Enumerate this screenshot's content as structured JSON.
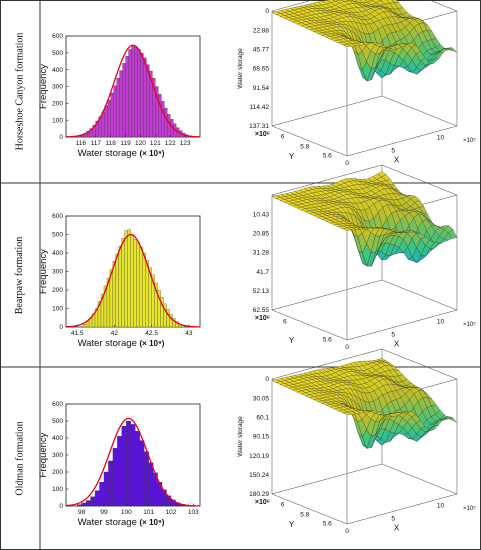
{
  "rows": [
    {
      "label": "Horseshoe Canyon formation"
    },
    {
      "label": "Bearpaw formation"
    },
    {
      "label": "Oldman formation"
    }
  ],
  "colors": {
    "fit_curve": "#e8001c",
    "grid_lines": "#222222"
  },
  "chart_data": [
    {
      "type": "bar",
      "subtype": "histogram-with-normal-fit",
      "panel": "Horseshoe Canyon formation",
      "xlabel": "Water storage",
      "xlabel_unit": "(× 10⁹)",
      "ylabel": "Frequency",
      "xlim": [
        115,
        124
      ],
      "ylim": [
        0,
        600
      ],
      "xticks": [
        116,
        117,
        118,
        119,
        120,
        121,
        122,
        123
      ],
      "yticks": [
        0,
        100,
        200,
        300,
        400,
        500,
        600
      ],
      "bar_color": "#c23cd3",
      "fit": {
        "mean": 119.5,
        "sd": 1.25,
        "peak": 545
      },
      "bins": [
        [
          115.9,
          8
        ],
        [
          116.1,
          14
        ],
        [
          116.3,
          22
        ],
        [
          116.5,
          34
        ],
        [
          116.7,
          50
        ],
        [
          116.9,
          70
        ],
        [
          117.1,
          95
        ],
        [
          117.3,
          120
        ],
        [
          117.5,
          150
        ],
        [
          117.7,
          185
        ],
        [
          117.9,
          220
        ],
        [
          118.1,
          262
        ],
        [
          118.3,
          305
        ],
        [
          118.5,
          350
        ],
        [
          118.7,
          395
        ],
        [
          118.9,
          438
        ],
        [
          119.1,
          480
        ],
        [
          119.3,
          520
        ],
        [
          119.5,
          545
        ],
        [
          119.7,
          535
        ],
        [
          119.9,
          520
        ],
        [
          120.1,
          498
        ],
        [
          120.3,
          470
        ],
        [
          120.5,
          430
        ],
        [
          120.7,
          392
        ],
        [
          120.9,
          350
        ],
        [
          121.1,
          300
        ],
        [
          121.3,
          255
        ],
        [
          121.5,
          212
        ],
        [
          121.7,
          172
        ],
        [
          121.9,
          135
        ],
        [
          122.1,
          105
        ],
        [
          122.3,
          78
        ],
        [
          122.5,
          55
        ],
        [
          122.7,
          38
        ],
        [
          122.9,
          24
        ],
        [
          123.1,
          14
        ],
        [
          123.3,
          8
        ]
      ]
    },
    {
      "type": "surface",
      "panel": "Horseshoe Canyon formation",
      "zlabel": "Water storage",
      "xlabel": "X",
      "ylabel": "Y",
      "x_multiplier": "×10⁵",
      "y_multiplier": "×10⁶",
      "zticks": [
        "0",
        "22.88",
        "45.77",
        "68.65",
        "91.54",
        "114.42",
        "137.31"
      ],
      "xticks": [
        "0",
        "5",
        "10"
      ],
      "yticks": [
        "5.6",
        "5.8",
        "6"
      ],
      "zlim": [
        0,
        137.31
      ]
    },
    {
      "type": "bar",
      "subtype": "histogram-with-normal-fit",
      "panel": "Bearpaw formation",
      "xlabel": "Water storage",
      "xlabel_unit": "(× 10⁹)",
      "ylabel": "Frequency",
      "xlim": [
        41.35,
        43.15
      ],
      "ylim": [
        0,
        600
      ],
      "xticks": [
        41.5,
        42,
        42.5,
        43
      ],
      "yticks": [
        0,
        100,
        200,
        300,
        400,
        500,
        600
      ],
      "bar_color": "#e6e62a",
      "fit": {
        "mean": 42.22,
        "sd": 0.25,
        "peak": 500
      },
      "bins": [
        [
          41.6,
          15
        ],
        [
          41.64,
          30
        ],
        [
          41.68,
          48
        ],
        [
          41.72,
          72
        ],
        [
          41.76,
          98
        ],
        [
          41.8,
          140
        ],
        [
          41.84,
          178
        ],
        [
          41.88,
          222
        ],
        [
          41.92,
          265
        ],
        [
          41.96,
          310
        ],
        [
          42.0,
          355
        ],
        [
          42.04,
          395
        ],
        [
          42.08,
          438
        ],
        [
          42.12,
          480
        ],
        [
          42.16,
          520
        ],
        [
          42.2,
          525
        ],
        [
          42.24,
          498
        ],
        [
          42.28,
          475
        ],
        [
          42.32,
          455
        ],
        [
          42.36,
          430
        ],
        [
          42.4,
          400
        ],
        [
          42.44,
          360
        ],
        [
          42.48,
          320
        ],
        [
          42.52,
          282
        ],
        [
          42.56,
          238
        ],
        [
          42.6,
          198
        ],
        [
          42.64,
          160
        ],
        [
          42.68,
          125
        ],
        [
          42.72,
          95
        ],
        [
          42.76,
          68
        ],
        [
          42.8,
          45
        ],
        [
          42.84,
          28
        ],
        [
          42.88,
          16
        ],
        [
          42.92,
          8
        ]
      ]
    },
    {
      "type": "surface",
      "panel": "Bearpaw formation",
      "zlabel": "",
      "xlabel": "X",
      "ylabel": "Y",
      "x_multiplier": "×10⁵",
      "y_multiplier": "×10⁶",
      "zticks": [
        "10.43",
        "20.85",
        "31.28",
        "41.7",
        "52.13",
        "62.55"
      ],
      "xticks": [
        "0",
        "5",
        "10"
      ],
      "yticks": [
        "5.6",
        "6"
      ],
      "zlim": [
        0,
        62.55
      ]
    },
    {
      "type": "bar",
      "subtype": "histogram-with-normal-fit",
      "panel": "Oldman formation",
      "xlabel": "Water storage",
      "xlabel_unit": "(× 10⁹)",
      "ylabel": "Frequency",
      "xlim": [
        97.3,
        103.3
      ],
      "ylim": [
        0,
        600
      ],
      "xticks": [
        98,
        99,
        100,
        101,
        102,
        103
      ],
      "yticks": [
        0,
        100,
        200,
        300,
        400,
        500,
        600
      ],
      "bar_color": "#5a14d8",
      "fit": {
        "mean": 100.1,
        "sd": 0.85,
        "peak": 515
      },
      "bins": [
        [
          97.9,
          8
        ],
        [
          98.1,
          18
        ],
        [
          98.3,
          32
        ],
        [
          98.5,
          55
        ],
        [
          98.7,
          90
        ],
        [
          98.9,
          140
        ],
        [
          99.1,
          200
        ],
        [
          99.3,
          265
        ],
        [
          99.5,
          340
        ],
        [
          99.7,
          410
        ],
        [
          99.9,
          470
        ],
        [
          100.1,
          500
        ],
        [
          100.3,
          480
        ],
        [
          100.5,
          440
        ],
        [
          100.7,
          385
        ],
        [
          100.9,
          320
        ],
        [
          101.1,
          255
        ],
        [
          101.3,
          195
        ],
        [
          101.5,
          140
        ],
        [
          101.7,
          95
        ],
        [
          101.9,
          60
        ],
        [
          102.1,
          36
        ],
        [
          102.3,
          20
        ],
        [
          102.5,
          10
        ]
      ]
    },
    {
      "type": "surface",
      "panel": "Oldman formation",
      "zlabel": "Water storage",
      "xlabel": "X",
      "ylabel": "Y",
      "x_multiplier": "×10⁵",
      "y_multiplier": "×10⁶",
      "zticks": [
        "0",
        "30.05",
        "60.1",
        "90.15",
        "120.19",
        "150.24",
        "180.29"
      ],
      "xticks": [
        "0",
        "5",
        "10"
      ],
      "yticks": [
        "5.6",
        "5.8",
        "6"
      ],
      "zlim": [
        0,
        180.29
      ]
    }
  ]
}
